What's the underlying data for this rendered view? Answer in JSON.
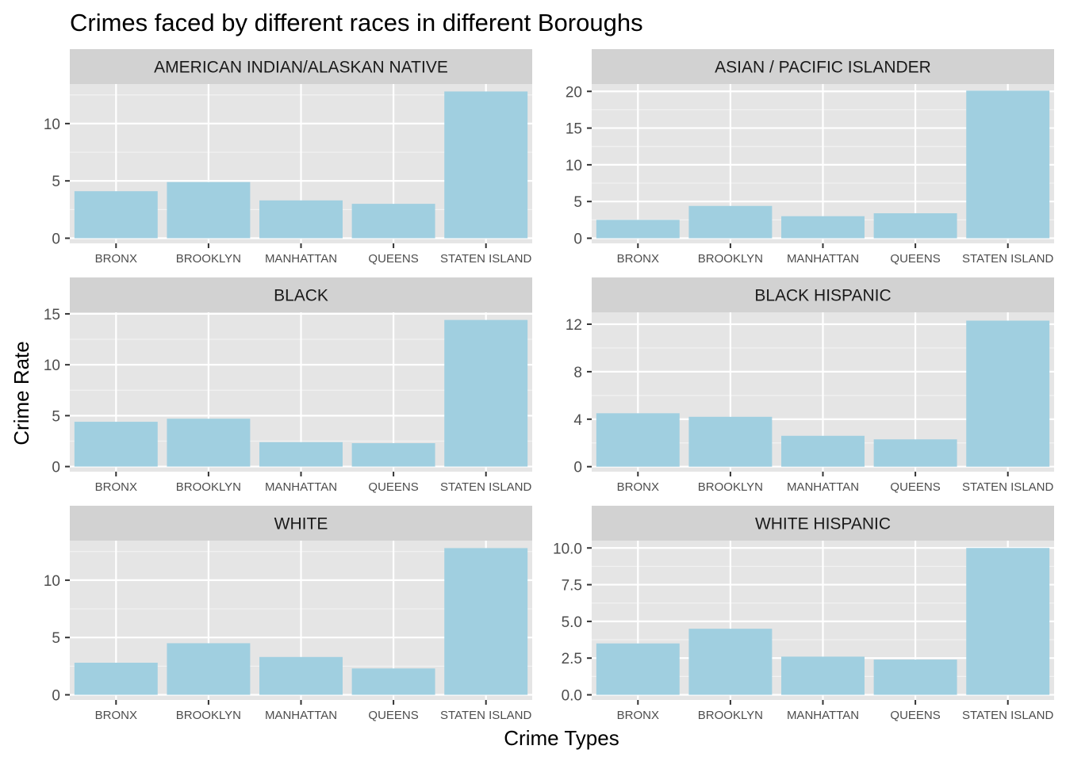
{
  "chart_data": {
    "type": "bar",
    "title": "Crimes faced by different races in different Boroughs",
    "xlabel": "Crime Types",
    "ylabel": "Crime Rate",
    "bar_color": "#a0cfe0",
    "panel_background": "#e5e5e5",
    "strip_background": "#d2d2d2",
    "grid": true,
    "categories": [
      "BRONX",
      "BROOKLYN",
      "MANHATTAN",
      "QUEENS",
      "STATEN ISLAND"
    ],
    "facets": [
      {
        "name": "AMERICAN INDIAN/ALASKAN NATIVE",
        "values": [
          4.1,
          4.9,
          3.3,
          3.0,
          12.8
        ],
        "ylim": [
          -0.45,
          13.45
        ],
        "yticks": [
          "0",
          "5",
          "10"
        ],
        "ytick_values": [
          0,
          5,
          10
        ]
      },
      {
        "name": "ASIAN / PACIFIC ISLANDER",
        "values": [
          2.5,
          4.4,
          3.0,
          3.4,
          20.1
        ],
        "ylim": [
          -0.7,
          21.0
        ],
        "yticks": [
          "0",
          "5",
          "10",
          "15",
          "20"
        ],
        "ytick_values": [
          0,
          5,
          10,
          15,
          20
        ]
      },
      {
        "name": "BLACK",
        "values": [
          4.4,
          4.7,
          2.4,
          2.3,
          14.4
        ],
        "ylim": [
          -0.5,
          15.15
        ],
        "yticks": [
          "0",
          "5",
          "10",
          "15"
        ],
        "ytick_values": [
          0,
          5,
          10,
          15
        ]
      },
      {
        "name": "BLACK HISPANIC",
        "values": [
          4.5,
          4.2,
          2.6,
          2.3,
          12.3
        ],
        "ylim": [
          -0.42,
          13.0
        ],
        "yticks": [
          "0",
          "4",
          "8",
          "12"
        ],
        "ytick_values": [
          0,
          4,
          8,
          12
        ]
      },
      {
        "name": "WHITE",
        "values": [
          2.8,
          4.5,
          3.3,
          2.3,
          12.8
        ],
        "ylim": [
          -0.45,
          13.45
        ],
        "yticks": [
          "0",
          "5",
          "10"
        ],
        "ytick_values": [
          0,
          5,
          10
        ]
      },
      {
        "name": "WHITE HISPANIC",
        "values": [
          3.5,
          4.5,
          2.6,
          2.4,
          10.0
        ],
        "ylim": [
          -0.35,
          10.5
        ],
        "yticks": [
          "0.0",
          "2.5",
          "5.0",
          "7.5",
          "10.0"
        ],
        "ytick_values": [
          0,
          2.5,
          5,
          7.5,
          10
        ]
      }
    ]
  }
}
